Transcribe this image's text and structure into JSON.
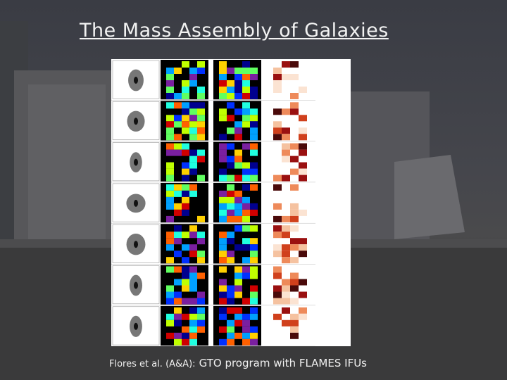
{
  "slide": {
    "title": "The Mass Assembly of Galaxies",
    "caption": {
      "citation": "Flores et al. (A&A):",
      "text": "GTO program with FLAMES IFUs"
    }
  }
}
